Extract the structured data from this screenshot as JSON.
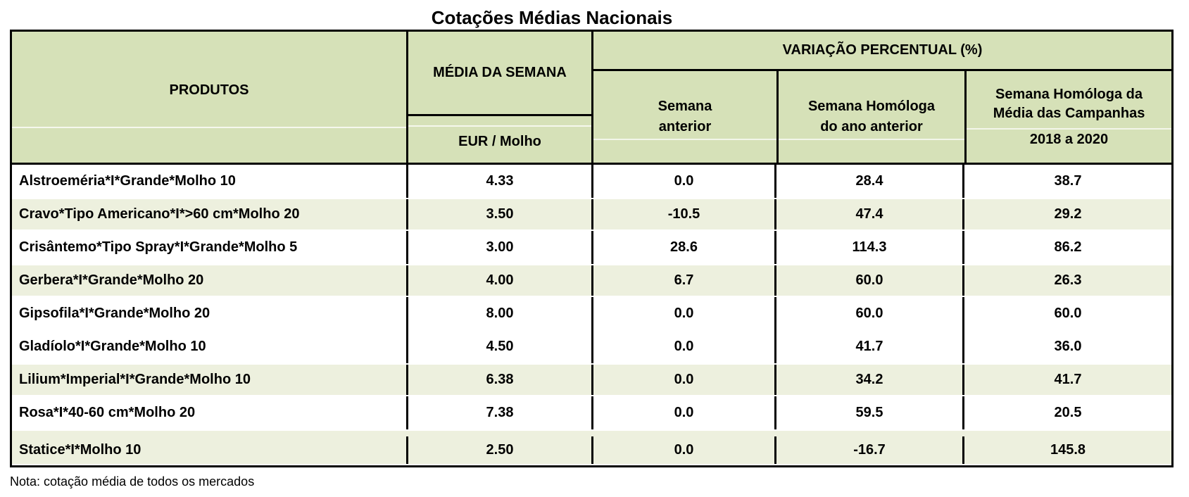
{
  "title": "Cotações Médias Nacionais",
  "note": "Nota: cotação média de todos os mercados",
  "colors": {
    "header_green": "#d6e1b8",
    "row_green": "#edf0de",
    "border_black": "#000000"
  },
  "table": {
    "header": {
      "produtos": "PRODUTOS",
      "media_semana": "MÉDIA DA SEMANA",
      "media_unit": "EUR / Molho",
      "variacao": "VARIAÇÃO PERCENTUAL (%)",
      "sub_semana_anterior": {
        "line1": "Semana",
        "line2": "anterior"
      },
      "sub_homologa_ano": {
        "line1": "Semana Homóloga",
        "line2": "do ano anterior"
      },
      "sub_homologa_campanhas": {
        "line1": "Semana Homóloga da",
        "line2": "Média das Campanhas",
        "line3": "2018 a 2020"
      }
    },
    "rows": [
      {
        "produto": "Alstroeméria*I*Grande*Molho 10",
        "media_semana": "4.33",
        "var_semana_anterior": "0.0",
        "var_homologa_ano": "28.4",
        "var_homologa_campanhas": "38.7"
      },
      {
        "produto": "Cravo*Tipo Americano*I*>60 cm*Molho 20",
        "media_semana": "3.50",
        "var_semana_anterior": "-10.5",
        "var_homologa_ano": "47.4",
        "var_homologa_campanhas": "29.2"
      },
      {
        "produto": "Crisântemo*Tipo Spray*I*Grande*Molho 5",
        "media_semana": "3.00",
        "var_semana_anterior": "28.6",
        "var_homologa_ano": "114.3",
        "var_homologa_campanhas": "86.2"
      },
      {
        "produto": "Gerbera*I*Grande*Molho 20",
        "media_semana": "4.00",
        "var_semana_anterior": "6.7",
        "var_homologa_ano": "60.0",
        "var_homologa_campanhas": "26.3"
      },
      {
        "produto": "Gipsofila*I*Grande*Molho 20",
        "media_semana": "8.00",
        "var_semana_anterior": "0.0",
        "var_homologa_ano": "60.0",
        "var_homologa_campanhas": "60.0"
      },
      {
        "produto": "Gladíolo*I*Grande*Molho 10",
        "media_semana": "4.50",
        "var_semana_anterior": "0.0",
        "var_homologa_ano": "41.7",
        "var_homologa_campanhas": "36.0"
      },
      {
        "produto": "Lilium*Imperial*I*Grande*Molho 10",
        "media_semana": "6.38",
        "var_semana_anterior": "0.0",
        "var_homologa_ano": "34.2",
        "var_homologa_campanhas": "41.7"
      },
      {
        "produto": "Rosa*I*40-60 cm*Molho 20",
        "media_semana": "7.38",
        "var_semana_anterior": "0.0",
        "var_homologa_ano": "59.5",
        "var_homologa_campanhas": "20.5"
      },
      {
        "produto": "Statice*I*Molho 10",
        "media_semana": "2.50",
        "var_semana_anterior": "0.0",
        "var_homologa_ano": "-16.7",
        "var_homologa_campanhas": "145.8"
      }
    ]
  }
}
